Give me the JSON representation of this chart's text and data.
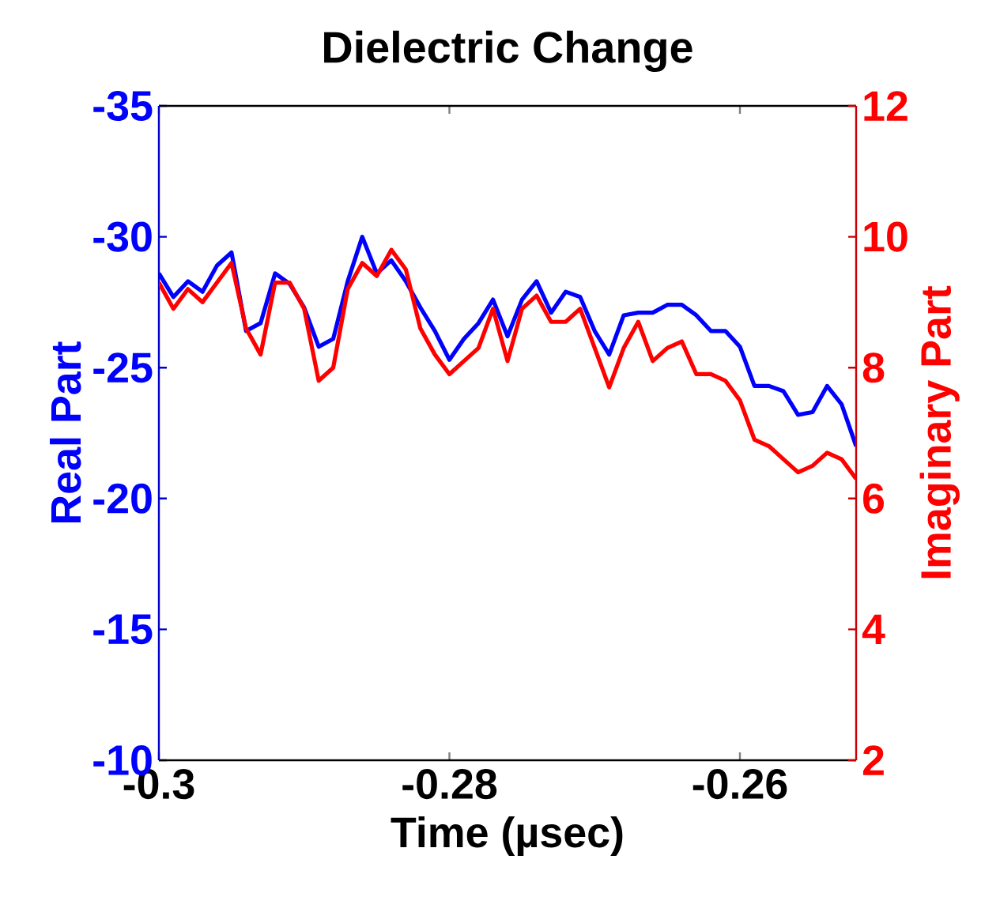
{
  "chart_data": {
    "type": "line",
    "title": "Dielectric Change",
    "xlabel": "Time (µsec)",
    "ylabel": "Real Part",
    "y2label": "Imaginary Part",
    "x": [
      -0.3,
      -0.299,
      -0.298,
      -0.297,
      -0.296,
      -0.295,
      -0.294,
      -0.293,
      -0.292,
      -0.291,
      -0.29,
      -0.289,
      -0.288,
      -0.287,
      -0.286,
      -0.285,
      -0.284,
      -0.283,
      -0.282,
      -0.281,
      -0.28,
      -0.279,
      -0.278,
      -0.277,
      -0.276,
      -0.275,
      -0.274,
      -0.273,
      -0.272,
      -0.271,
      -0.27,
      -0.269,
      -0.268,
      -0.267,
      -0.266,
      -0.265,
      -0.264,
      -0.263,
      -0.262,
      -0.261,
      -0.26,
      -0.259,
      -0.258,
      -0.257,
      -0.256,
      -0.255,
      -0.254,
      -0.253,
      -0.252
    ],
    "series": [
      {
        "color": "#0000ff",
        "values": [
          -28.6,
          -27.7,
          -28.3,
          -27.9,
          -28.9,
          -29.4,
          -26.4,
          -26.7,
          -28.6,
          -28.2,
          -27.3,
          -25.8,
          -26.1,
          -28.3,
          -30.0,
          -28.6,
          -29.1,
          -28.3,
          -27.3,
          -26.4,
          -25.3,
          -26.1,
          -26.7,
          -27.6,
          -26.2,
          -27.6,
          -28.3,
          -27.1,
          -27.9,
          -27.7,
          -26.4,
          -25.5,
          -27.0,
          -27.1,
          -27.1,
          -27.4,
          -27.4,
          -27.0,
          -26.4,
          -26.4,
          -25.8,
          -24.3,
          -24.3,
          -24.1,
          -23.2,
          -23.3,
          -24.3,
          -23.6,
          -22.0
        ]
      },
      {
        "color": "#ff0000",
        "axis": "y2",
        "values": [
          9.3,
          8.9,
          9.2,
          9.0,
          9.3,
          9.6,
          8.6,
          8.2,
          9.3,
          9.3,
          8.9,
          7.8,
          8.0,
          9.2,
          9.6,
          9.4,
          9.8,
          9.5,
          8.6,
          8.2,
          7.9,
          8.1,
          8.3,
          8.9,
          8.1,
          8.9,
          9.1,
          8.7,
          8.7,
          8.9,
          8.3,
          7.7,
          8.3,
          8.7,
          8.1,
          8.3,
          8.4,
          7.9,
          7.9,
          7.8,
          7.5,
          6.9,
          6.8,
          6.6,
          6.4,
          6.5,
          6.7,
          6.6,
          6.3
        ]
      }
    ],
    "xlim": [
      -0.3,
      -0.252
    ],
    "xticks": [
      -0.3,
      -0.28,
      -0.26
    ],
    "ylim": [
      -10,
      -35
    ],
    "yticks": [
      -35,
      -30,
      -25,
      -20,
      -15,
      -10
    ],
    "y2lim": [
      2,
      12
    ],
    "y2ticks": [
      2,
      4,
      6,
      8,
      10,
      12
    ]
  }
}
